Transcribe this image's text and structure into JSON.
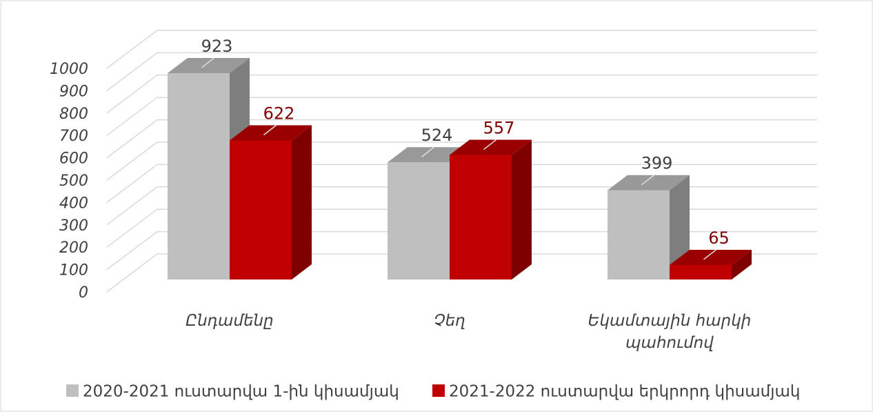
{
  "chart_data": {
    "type": "bar3d",
    "categories": [
      "Ընդամենը",
      "Չեղ",
      "Եկամտային հարկի պահումով"
    ],
    "series": [
      {
        "name": "2020-2021 ուստարվա 1-ին կիսամյակ",
        "color": "#bfbfbf",
        "values": [
          923,
          524,
          399
        ]
      },
      {
        "name": "2021-2022 ուստարվա երկրորդ կիսամյակ",
        "color": "#c00000",
        "values": [
          622,
          557,
          65
        ]
      }
    ],
    "ylim": [
      0,
      1000
    ],
    "yticks": [
      0,
      100,
      200,
      300,
      400,
      500,
      600,
      700,
      800,
      900,
      1000
    ],
    "grid": true,
    "legend": "bottom"
  }
}
